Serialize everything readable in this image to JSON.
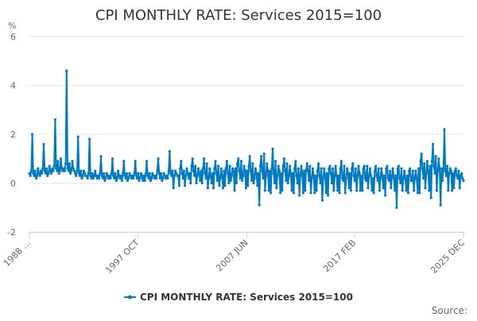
{
  "chart_data": {
    "type": "line",
    "title": "CPI MONTHLY RATE: Services 2015=100",
    "ylabel": "%",
    "xlabel": "",
    "ylim": [
      -2,
      6
    ],
    "yticks": [
      -2,
      0,
      2,
      4,
      6
    ],
    "xtick_labels": [
      "1988 …",
      "1997 OCT",
      "2007 JUN",
      "2017 FEB",
      "2025 DEC"
    ],
    "legend_position": "bottom-center",
    "source_label": "Source:",
    "series": [
      {
        "name": "CPI MONTHLY RATE: Services 2015=100",
        "color": "#0079BF",
        "x_start": "1988 JAN",
        "x_end": "2025 DEC",
        "values": [
          0.4,
          0.3,
          0.5,
          2.0,
          0.4,
          0.3,
          0.5,
          0.2,
          0.3,
          0.6,
          0.4,
          0.3,
          0.5,
          0.4,
          0.6,
          1.6,
          0.5,
          0.4,
          0.6,
          0.3,
          0.4,
          0.7,
          0.5,
          0.4,
          0.6,
          0.5,
          0.7,
          2.6,
          0.6,
          0.5,
          0.9,
          0.4,
          0.5,
          1.0,
          0.6,
          0.5,
          0.6,
          0.5,
          0.8,
          4.6,
          0.6,
          0.5,
          0.8,
          0.4,
          0.5,
          0.9,
          0.6,
          0.5,
          0.4,
          0.3,
          0.5,
          1.9,
          0.4,
          0.3,
          0.5,
          0.2,
          0.3,
          0.5,
          0.4,
          0.3,
          0.3,
          0.2,
          0.4,
          1.8,
          0.3,
          0.2,
          0.4,
          0.2,
          0.3,
          0.5,
          0.3,
          0.2,
          0.3,
          0.2,
          0.4,
          1.1,
          0.3,
          0.2,
          0.4,
          0.1,
          0.2,
          0.4,
          0.3,
          0.2,
          0.3,
          0.2,
          0.4,
          1.0,
          0.3,
          0.2,
          0.4,
          0.1,
          0.2,
          0.5,
          0.3,
          0.2,
          0.3,
          0.1,
          0.4,
          0.9,
          0.3,
          0.2,
          0.4,
          0.1,
          0.2,
          0.4,
          0.3,
          0.2,
          0.3,
          0.2,
          0.4,
          0.9,
          0.3,
          0.2,
          0.4,
          0.1,
          0.2,
          0.4,
          0.3,
          0.1,
          0.3,
          0.1,
          0.4,
          0.9,
          0.3,
          0.2,
          0.4,
          0.1,
          0.2,
          0.4,
          0.3,
          0.2,
          0.3,
          0.2,
          0.5,
          1.0,
          0.4,
          0.2,
          0.4,
          0.1,
          0.2,
          0.4,
          0.3,
          0.2,
          0.3,
          0.2,
          0.5,
          1.3,
          0.4,
          0.3,
          0.5,
          -0.2,
          0.3,
          0.5,
          0.4,
          0.3,
          0.3,
          -0.1,
          0.6,
          0.9,
          0.4,
          0.2,
          0.5,
          -0.1,
          0.3,
          0.6,
          0.4,
          0.2,
          0.4,
          0.0,
          0.7,
          1.0,
          0.5,
          0.3,
          0.7,
          0.0,
          0.3,
          0.6,
          0.4,
          0.1,
          0.5,
          0.0,
          0.6,
          1.0,
          0.4,
          0.2,
          0.8,
          -0.2,
          0.2,
          0.6,
          0.3,
          0.0,
          0.4,
          -0.2,
          0.6,
          0.9,
          0.4,
          0.1,
          0.7,
          -0.1,
          0.2,
          0.6,
          0.3,
          -0.2,
          0.5,
          -0.1,
          0.6,
          0.9,
          0.4,
          0.0,
          0.7,
          0.1,
          0.3,
          0.6,
          0.5,
          -0.3,
          0.6,
          0.0,
          0.8,
          1.0,
          0.5,
          0.2,
          0.9,
          0.1,
          0.3,
          0.7,
          0.5,
          -0.2,
          0.5,
          -0.1,
          0.7,
          1.1,
          0.5,
          0.1,
          0.8,
          0.0,
          0.2,
          0.6,
          0.4,
          -0.1,
          0.4,
          -0.9,
          0.7,
          1.1,
          0.5,
          0.2,
          1.2,
          -0.3,
          0.3,
          0.8,
          0.5,
          -0.3,
          0.5,
          -0.4,
          0.6,
          1.4,
          0.4,
          0.0,
          0.9,
          -0.2,
          0.3,
          0.7,
          0.5,
          -0.4,
          0.4,
          -0.3,
          0.7,
          1.0,
          0.5,
          0.1,
          0.8,
          0.0,
          0.3,
          0.7,
          0.4,
          -0.3,
          0.4,
          -0.4,
          0.6,
          0.9,
          0.3,
          0.0,
          0.6,
          -0.5,
          0.3,
          0.7,
          0.4,
          -0.4,
          0.5,
          -0.3,
          0.5,
          0.8,
          0.5,
          0.1,
          0.7,
          -0.4,
          0.2,
          0.6,
          0.3,
          -0.4,
          0.3,
          -0.3,
          0.5,
          0.8,
          0.3,
          0.0,
          0.6,
          -0.7,
          0.2,
          0.6,
          0.3,
          -0.4,
          0.4,
          -0.5,
          0.6,
          0.7,
          0.4,
          0.0,
          0.6,
          -0.3,
          0.3,
          0.7,
          0.3,
          -0.3,
          0.3,
          -0.4,
          0.6,
          0.9,
          0.2,
          0.1,
          0.7,
          -0.4,
          0.2,
          0.6,
          0.4,
          -0.2,
          0.4,
          -0.3,
          0.6,
          0.8,
          0.3,
          0.1,
          0.6,
          -0.3,
          0.3,
          0.7,
          0.4,
          -0.3,
          0.3,
          -0.3,
          0.6,
          0.7,
          0.2,
          0.1,
          0.7,
          -0.2,
          0.3,
          0.6,
          0.3,
          -0.3,
          0.2,
          -0.4,
          0.5,
          0.7,
          0.3,
          0.1,
          0.6,
          -0.3,
          0.2,
          0.6,
          0.3,
          -0.2,
          0.3,
          -0.5,
          0.6,
          0.7,
          0.2,
          0.1,
          0.5,
          -0.2,
          0.3,
          0.6,
          0.2,
          -0.3,
          0.3,
          -1.0,
          0.6,
          0.7,
          0.2,
          0.0,
          0.6,
          -0.3,
          0.2,
          0.5,
          0.2,
          -0.3,
          0.3,
          -0.4,
          0.5,
          0.6,
          0.1,
          0.1,
          0.5,
          -0.3,
          0.2,
          0.5,
          0.2,
          -0.4,
          0.6,
          -0.4,
          0.9,
          1.2,
          0.6,
          0.2,
          0.8,
          -0.2,
          0.4,
          0.9,
          0.5,
          -0.3,
          0.7,
          -0.6,
          0.9,
          1.6,
          0.7,
          0.4,
          1.1,
          -0.3,
          0.5,
          1.0,
          0.6,
          -0.9,
          0.6,
          0.1,
          0.6,
          2.2,
          0.5,
          0.3,
          0.7,
          -0.3,
          0.4,
          0.6,
          0.5,
          -0.3,
          0.4,
          -0.2,
          0.5,
          0.6,
          0.3,
          0.2,
          0.5,
          -0.2,
          0.3,
          0.4,
          0.2,
          0.1
        ]
      }
    ]
  }
}
